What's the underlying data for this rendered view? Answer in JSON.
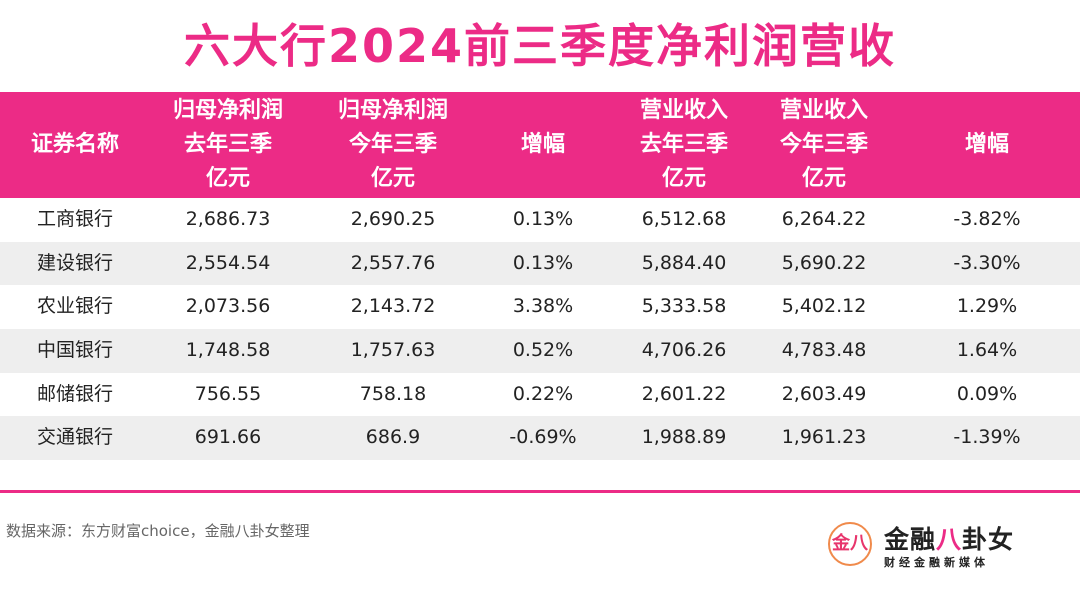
{
  "title": "六大行2024前三季度净利润营收",
  "table": {
    "headers": [
      [
        "证券名称"
      ],
      [
        "归母净利润",
        "去年三季",
        "亿元"
      ],
      [
        "归母净利润",
        "今年三季",
        "亿元"
      ],
      [
        "增幅"
      ],
      [
        "营业收入",
        "去年三季",
        "亿元"
      ],
      [
        "营业收入",
        "今年三季",
        "亿元"
      ],
      [
        "增幅"
      ]
    ],
    "rows": [
      [
        "工商银行",
        "2,686.73",
        "2,690.25",
        "0.13%",
        "6,512.68",
        "6,264.22",
        "-3.82%"
      ],
      [
        "建设银行",
        "2,554.54",
        "2,557.76",
        "0.13%",
        "5,884.40",
        "5,690.22",
        "-3.30%"
      ],
      [
        "农业银行",
        "2,073.56",
        "2,143.72",
        "3.38%",
        "5,333.58",
        "5,402.12",
        "1.29%"
      ],
      [
        "中国银行",
        "1,748.58",
        "1,757.63",
        "0.52%",
        "4,706.26",
        "4,783.48",
        "1.64%"
      ],
      [
        "邮储银行",
        "756.55",
        "758.18",
        "0.22%",
        "2,601.22",
        "2,603.49",
        "0.09%"
      ],
      [
        "交通银行",
        "691.66",
        "686.9",
        "-0.69%",
        "1,988.89",
        "1,961.23",
        "-1.39%"
      ]
    ]
  },
  "chart_data": {
    "type": "table",
    "title": "六大行2024前三季度净利润营收",
    "columns": [
      "证券名称",
      "归母净利润 去年三季 亿元",
      "归母净利润 今年三季 亿元",
      "增幅",
      "营业收入 去年三季 亿元",
      "营业收入 今年三季 亿元",
      "增幅"
    ],
    "rows": [
      [
        "工商银行",
        2686.73,
        2690.25,
        0.13,
        6512.68,
        6264.22,
        -3.82
      ],
      [
        "建设银行",
        2554.54,
        2557.76,
        0.13,
        5884.4,
        5690.22,
        -3.3
      ],
      [
        "农业银行",
        2073.56,
        2143.72,
        3.38,
        5333.58,
        5402.12,
        1.29
      ],
      [
        "中国银行",
        1748.58,
        1757.63,
        0.52,
        4706.26,
        4783.48,
        1.64
      ],
      [
        "邮储银行",
        756.55,
        758.18,
        0.22,
        2601.22,
        2603.49,
        0.09
      ],
      [
        "交通银行",
        691.66,
        686.9,
        -0.69,
        1988.89,
        1961.23,
        -1.39
      ]
    ]
  },
  "source": "数据来源：东方财富choice，金融八卦女整理",
  "logo": {
    "mark": "金八",
    "name_prefix": "金融",
    "name_accent": "八",
    "name_suffix": "卦女",
    "tagline": "财经金融新媒体"
  },
  "colors": {
    "accent": "#ec2b86",
    "row_alt": "#eeeeee",
    "text": "#222222"
  }
}
